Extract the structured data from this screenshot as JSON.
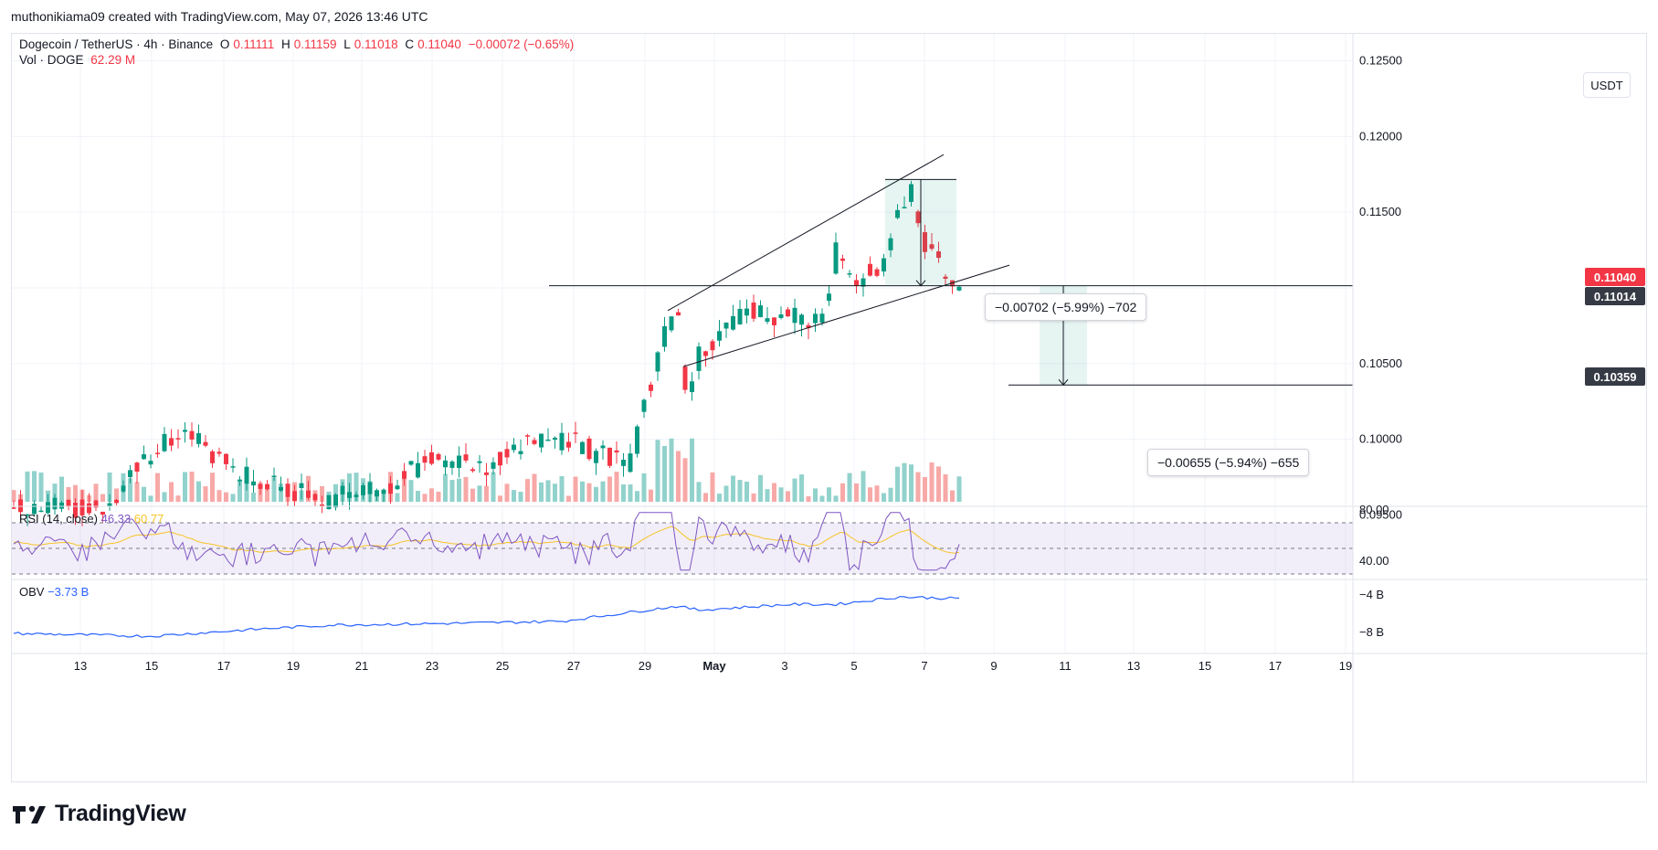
{
  "credit": "muthonikiama09 created with TradingView.com, May 07, 2026 13:46 UTC",
  "legend": {
    "symbol": "Dogecoin / TetherUS · 4h · Binance",
    "o_label": "O",
    "o_value": "0.11111",
    "h_label": "H",
    "h_value": "0.11159",
    "l_label": "L",
    "l_value": "0.11018",
    "c_label": "C",
    "c_value": "0.11040",
    "change": "−0.00072 (−0.65%)",
    "vol_label": "Vol · DOGE",
    "vol_value": "62.29 M"
  },
  "currency": "USDT",
  "price_axis": [
    "0.12500",
    "0.12000",
    "0.11500",
    "0.10500",
    "0.10000",
    "0.09500"
  ],
  "tags": {
    "last_price": "0.11040",
    "support": "0.11014",
    "target": "0.10359"
  },
  "measures": {
    "pattern_drop": "−0.00702 (−5.99%) −702",
    "projection": "−0.00655 (−5.94%) −655"
  },
  "rsi": {
    "label": "RSI (14, close)",
    "value": "46.33",
    "ma_value": "60.77",
    "axis": [
      "80.00",
      "40.00"
    ],
    "upper": 70,
    "middle": 50,
    "lower": 30
  },
  "obv": {
    "label": "OBV",
    "value": "−3.73 B",
    "axis": [
      "−4 B",
      "−8 B"
    ]
  },
  "x_axis": [
    "13",
    "15",
    "17",
    "19",
    "21",
    "23",
    "25",
    "27",
    "29",
    "May",
    "3",
    "5",
    "7",
    "9",
    "11",
    "13",
    "15",
    "17",
    "19"
  ],
  "brand": "TradingView",
  "colors": {
    "up": "#089981",
    "down": "#f23645",
    "vol_up": "#92d2cc",
    "vol_down": "#f7a9a7",
    "rsi": "#7e57c2",
    "rsi_ma": "#f7c325",
    "obv": "#2962ff",
    "tag_last": "#f23645",
    "tag_dark": "#363a45"
  },
  "chart_data": {
    "type": "candlestick",
    "symbol": "DOGE/USDT",
    "timeframe": "4h",
    "ylim": [
      0.095,
      0.127
    ],
    "price_points": [
      {
        "t": 0,
        "p": 0.0955
      },
      {
        "t": 40,
        "p": 0.0955
      },
      {
        "t": 60,
        "p": 0.099
      },
      {
        "t": 75,
        "p": 0.101
      },
      {
        "t": 90,
        "p": 0.0985
      },
      {
        "t": 105,
        "p": 0.0975
      },
      {
        "t": 135,
        "p": 0.096
      },
      {
        "t": 165,
        "p": 0.097
      },
      {
        "t": 185,
        "p": 0.099
      },
      {
        "t": 205,
        "p": 0.098
      },
      {
        "t": 220,
        "p": 0.0995
      },
      {
        "t": 245,
        "p": 0.1
      },
      {
        "t": 255,
        "p": 0.099
      },
      {
        "t": 270,
        "p": 0.0985
      },
      {
        "t": 283,
        "p": 0.106
      },
      {
        "t": 290,
        "p": 0.109
      },
      {
        "t": 295,
        "p": 0.1025
      },
      {
        "t": 300,
        "p": 0.1055
      },
      {
        "t": 320,
        "p": 0.1085
      },
      {
        "t": 340,
        "p": 0.108
      },
      {
        "t": 355,
        "p": 0.108
      },
      {
        "t": 360,
        "p": 0.1125
      },
      {
        "t": 370,
        "p": 0.1105
      },
      {
        "t": 380,
        "p": 0.1115
      },
      {
        "t": 388,
        "p": 0.1155
      },
      {
        "t": 394,
        "p": 0.1165
      },
      {
        "t": 398,
        "p": 0.113
      },
      {
        "t": 405,
        "p": 0.112
      },
      {
        "t": 410,
        "p": 0.1105
      },
      {
        "t": 415,
        "p": 0.1104
      }
    ],
    "annotations": [
      {
        "type": "rising_wedge",
        "upper": [
          [
            0.1085,
            290
          ],
          [
            0.1188,
            416
          ]
        ],
        "lower": [
          [
            0.1048,
            293
          ],
          [
            0.1115,
            435
          ]
        ]
      },
      {
        "type": "support_line",
        "price": 0.11014
      },
      {
        "type": "measure",
        "from": 0.11716,
        "to": 0.11014,
        "label": "−0.00702 (−5.99%) −702"
      },
      {
        "type": "measure",
        "from": 0.11014,
        "to": 0.10359,
        "label": "−0.00655 (−5.94%) −655"
      }
    ]
  }
}
